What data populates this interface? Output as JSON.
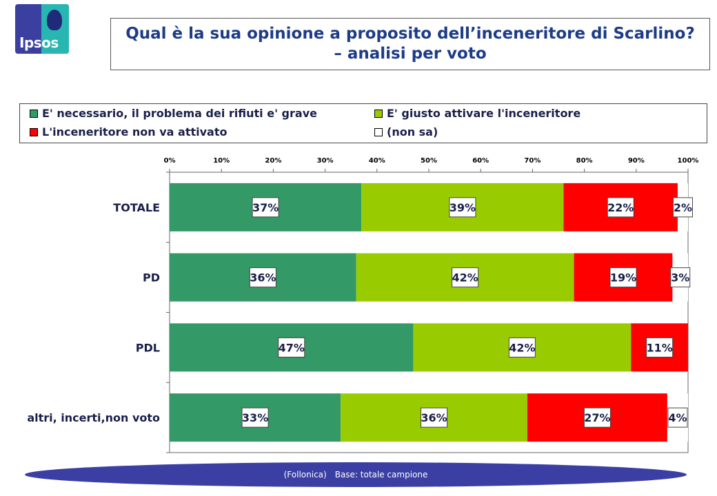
{
  "brand": {
    "logo_text": "Ipsos"
  },
  "title": {
    "line1": "Qual è la sua opinione a proposito dell’inceneritore di Scarlino?",
    "line2": "– analisi per voto"
  },
  "colors": {
    "necessario": "#339966",
    "giusto": "#99cc00",
    "non_attivato": "#ff0000",
    "non_sa": "#ffffff"
  },
  "chart_data": {
    "type": "bar",
    "orientation": "horizontal",
    "stacked": true,
    "categories": [
      "TOTALE",
      "PD",
      "PDL",
      "altri, incerti,non voto"
    ],
    "series": [
      {
        "name": "E' necessario, il problema dei rifiuti e' grave",
        "values": [
          37,
          36,
          47,
          33
        ]
      },
      {
        "name": "E' giusto attivare  l'inceneritore",
        "values": [
          39,
          42,
          42,
          36
        ]
      },
      {
        "name": "L'inceneritore non va attivato",
        "values": [
          22,
          19,
          11,
          27
        ]
      },
      {
        "name": "(non sa)",
        "values": [
          2,
          3,
          0,
          4
        ]
      }
    ],
    "value_labels": [
      [
        "37%",
        "39%",
        "22%",
        "2%"
      ],
      [
        "36%",
        "42%",
        "19%",
        "3%"
      ],
      [
        "47%",
        "42%",
        "11%",
        ""
      ],
      [
        "33%",
        "36%",
        "27%",
        "4%"
      ]
    ],
    "xticks": [
      "0%",
      "10%",
      "20%",
      "30%",
      "40%",
      "50%",
      "60%",
      "70%",
      "80%",
      "90%",
      "100%"
    ],
    "xlim": [
      0,
      100
    ],
    "legend_position": "top"
  },
  "footer": {
    "location": "(Follonica)",
    "base": "Base: totale campione"
  }
}
